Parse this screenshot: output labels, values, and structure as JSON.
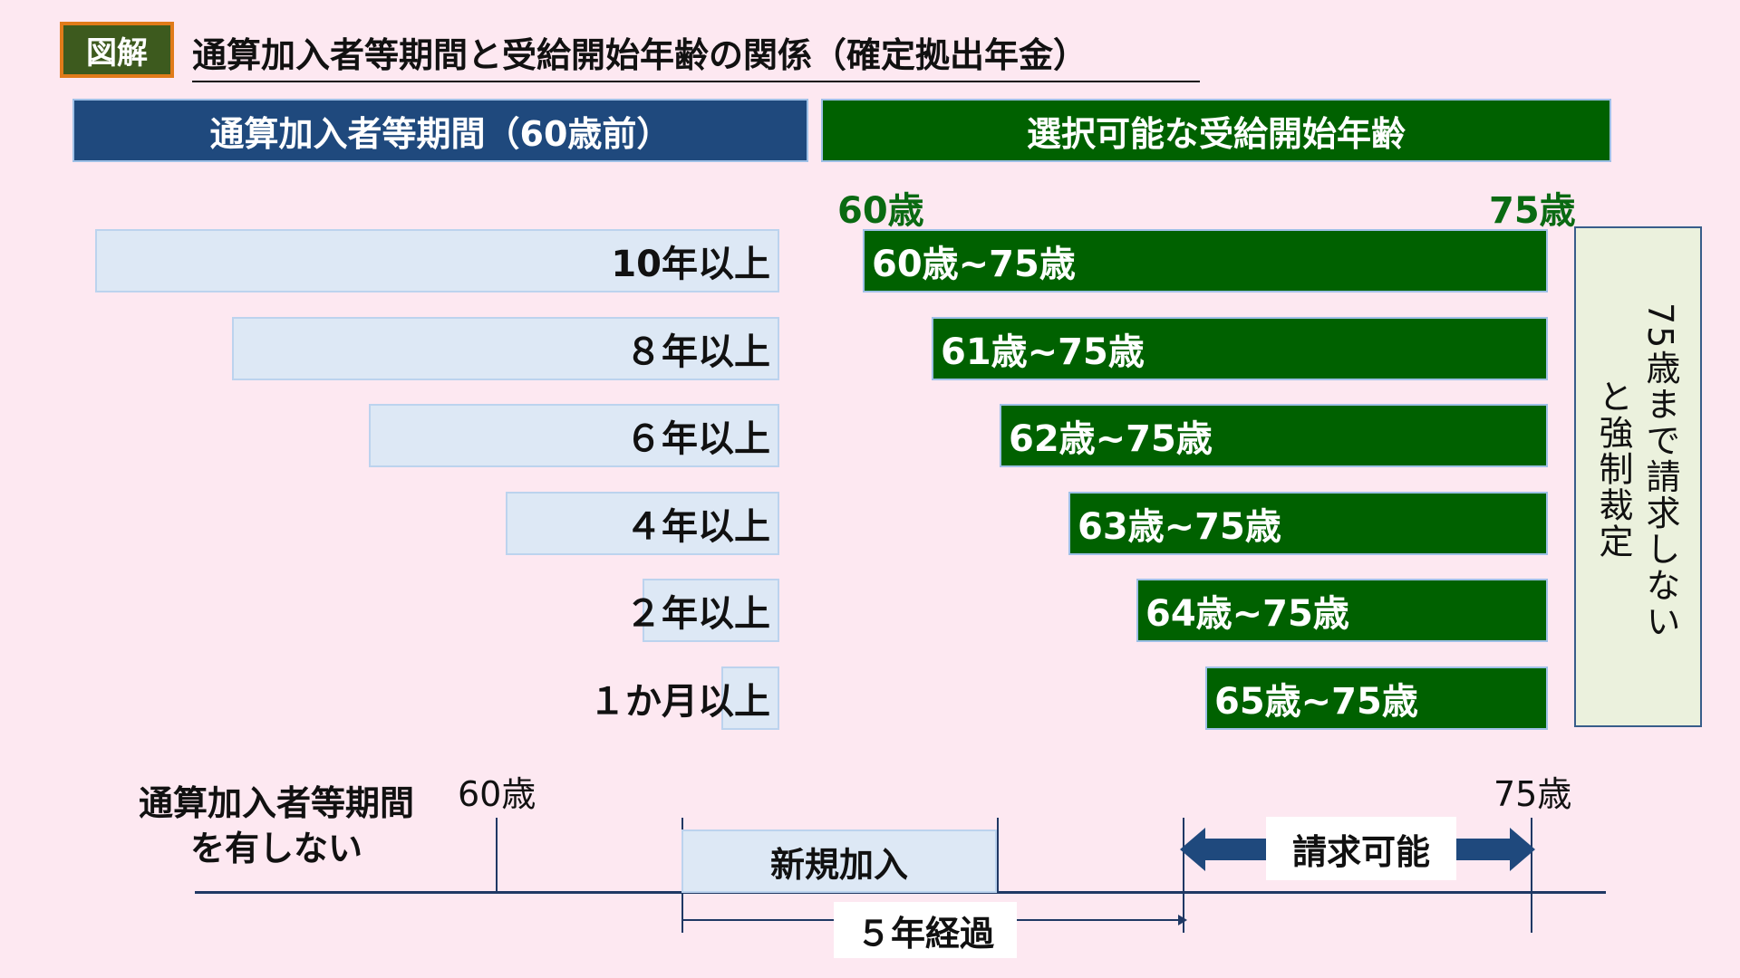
{
  "badge": "図解",
  "title": "通算加入者等期間と受給開始年齢の関係（確定拠出年金）",
  "header_left": "通算加入者等期間（60歳前）",
  "header_right": "選択可能な受給開始年齢",
  "axis_start": "60歳",
  "axis_end": "75歳",
  "rows": [
    {
      "period": "10年以上",
      "range": "60歳~75歳",
      "period_years": 10,
      "start_age": 60
    },
    {
      "period": "８年以上",
      "range": "61歳~75歳",
      "period_years": 8,
      "start_age": 61
    },
    {
      "period": "６年以上",
      "range": "62歳~75歳",
      "period_years": 6,
      "start_age": 62
    },
    {
      "period": "４年以上",
      "range": "63歳~75歳",
      "period_years": 4,
      "start_age": 63
    },
    {
      "period": "２年以上",
      "range": "64歳~75歳",
      "period_years": 2,
      "start_age": 64
    },
    {
      "period": "１か月以上",
      "range": "65歳~75歳",
      "period_years": 0.0833,
      "start_age": 65
    }
  ],
  "side_note_col1": "75歳まで請求しない",
  "side_note_col2": "と強制裁定",
  "bottom": {
    "no_period_line1": "通算加入者等期間",
    "no_period_line2": "を有しない",
    "tick_start": "60歳",
    "tick_end": "75歳",
    "new_join": "新規加入",
    "claimable": "請求可能",
    "five_years": "５年経過"
  },
  "colors": {
    "background": "#fde8f1",
    "navy": "#1f497d",
    "green": "#006100",
    "light_blue": "#dde8f5",
    "badge_bg": "#3d5a1e",
    "badge_border": "#e07b1a"
  }
}
